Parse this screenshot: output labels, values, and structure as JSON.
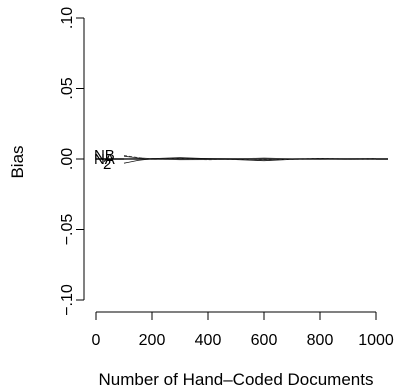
{
  "chart_data": {
    "type": "line",
    "xlabel": "Number of Hand–Coded Documents",
    "ylabel": "Bias",
    "xlim": [
      0,
      1000
    ],
    "ylim": [
      -0.1,
      0.1
    ],
    "x_ticks": [
      0,
      200,
      400,
      600,
      800,
      1000
    ],
    "x_tick_labels": [
      "0",
      "200",
      "400",
      "600",
      "800",
      "1000"
    ],
    "y_ticks": [
      -0.1,
      -0.05,
      0.0,
      0.05,
      0.1
    ],
    "y_tick_labels": [
      "−.10",
      "−.05",
      ".00",
      ".05",
      ".10"
    ],
    "reference_line": {
      "y": 0
    },
    "grid": false,
    "legend": "none",
    "series_labels": [
      {
        "text": "NB",
        "x": 30,
        "y": 0.003
      },
      {
        "text": "NA",
        "x": 30,
        "y": 0.0
      },
      {
        "text": "2",
        "x": 40,
        "y": -0.0035
      }
    ],
    "series": [
      {
        "label_id": "NB",
        "x": [
          100,
          150,
          200,
          300,
          400,
          500,
          600,
          700,
          800,
          900,
          1000
        ],
        "y": [
          0.002,
          0.0008,
          0.0003,
          0.0004,
          0.0002,
          0.0003,
          0.0002,
          0.0001,
          0.0003,
          0.0001,
          0.0002
        ]
      },
      {
        "label_id": "NA",
        "x": [
          100,
          150,
          200,
          300,
          400,
          500,
          600,
          700,
          800,
          900,
          1000
        ],
        "y": [
          0.0,
          -0.0003,
          0.0001,
          -0.0005,
          -0.0004,
          0.0,
          0.0007,
          0.0001,
          -0.0002,
          0.0003,
          0.0001
        ]
      },
      {
        "label_id": "2",
        "x": [
          100,
          150,
          200,
          300,
          400,
          500,
          600,
          700,
          800,
          900,
          1000
        ],
        "y": [
          -0.003,
          -0.001,
          0.0002,
          0.0009,
          0.0002,
          -0.0004,
          -0.0012,
          -0.0003,
          0.0004,
          0.0,
          0.0002
        ]
      },
      {
        "label_id": "dash",
        "x": [
          100,
          150,
          200,
          300,
          400,
          500,
          600,
          700,
          800,
          900,
          1000
        ],
        "y": [
          0.0025,
          0.001,
          -0.0002,
          0.0003,
          -0.0006,
          -0.0001,
          -0.0005,
          -0.0002,
          0.0002,
          -0.0003,
          0.0001
        ]
      }
    ]
  }
}
